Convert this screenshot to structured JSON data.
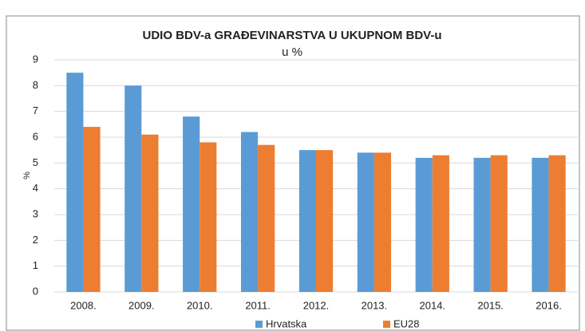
{
  "chart_data": {
    "type": "bar",
    "title": "UDIO BDV-a GRAĐEVINARSTVA U UKUPNOM BDV-u",
    "subtitle": "u %",
    "y_label": "%",
    "categories": [
      "2008.",
      "2009.",
      "2010.",
      "2011.",
      "2012.",
      "2013.",
      "2014.",
      "2015.",
      "2016."
    ],
    "series": [
      {
        "name": "Hrvatska",
        "color": "#5b9bd5",
        "values": [
          8.5,
          8.0,
          6.8,
          6.2,
          5.5,
          5.4,
          5.2,
          5.2,
          5.2
        ]
      },
      {
        "name": "EU28",
        "color": "#ed7d31",
        "values": [
          6.4,
          6.1,
          5.8,
          5.7,
          5.5,
          5.4,
          5.3,
          5.3,
          5.3
        ]
      }
    ],
    "ylim": [
      0,
      9
    ],
    "yticks": [
      0,
      1,
      2,
      3,
      4,
      5,
      6,
      7,
      8,
      9
    ],
    "grid": true,
    "legend": "bottom"
  }
}
